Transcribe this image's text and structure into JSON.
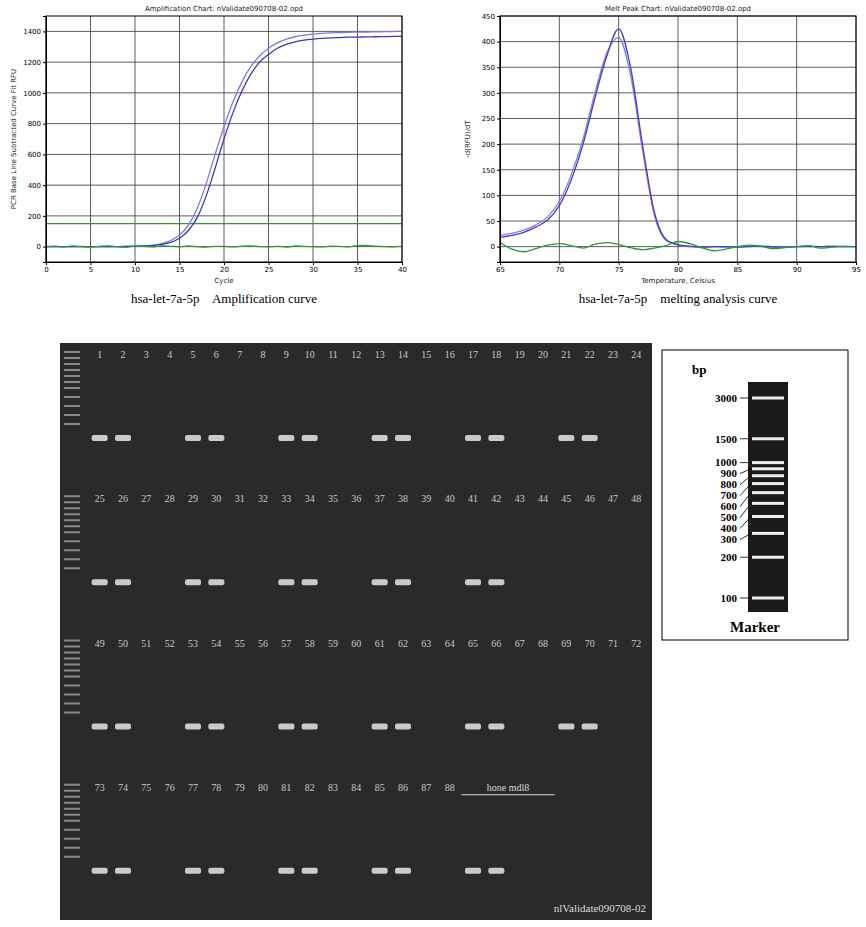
{
  "chart_data": [
    {
      "type": "line",
      "title": "Amplification Chart: nValidate090708-02.opd",
      "x_label": "Cycle",
      "y_label": "PCR Base Line Subtracted Curve Fit RFU",
      "caption": "hsa-let-7a-5p    Amplification curve",
      "x": [
        0,
        1,
        2,
        3,
        4,
        5,
        6,
        7,
        8,
        9,
        10,
        11,
        12,
        13,
        14,
        15,
        16,
        17,
        18,
        19,
        20,
        21,
        22,
        23,
        24,
        25,
        26,
        27,
        28,
        29,
        30,
        31,
        32,
        33,
        34,
        35,
        36,
        37,
        38,
        39,
        40
      ],
      "series": [
        {
          "color": "#7b7be8",
          "values": [
            0,
            0,
            0,
            0,
            0,
            0,
            0,
            0,
            0,
            2,
            3,
            5,
            10,
            20,
            40,
            75,
            140,
            250,
            410,
            600,
            780,
            940,
            1070,
            1170,
            1240,
            1290,
            1325,
            1350,
            1365,
            1375,
            1382,
            1387,
            1390,
            1392,
            1394,
            1395,
            1396,
            1397,
            1398,
            1399,
            1400
          ]
        },
        {
          "color": "#3a3ab8",
          "values": [
            0,
            0,
            0,
            0,
            0,
            0,
            0,
            0,
            0,
            1,
            2,
            4,
            7,
            14,
            28,
            55,
            105,
            190,
            330,
            510,
            700,
            870,
            1010,
            1120,
            1200,
            1250,
            1290,
            1315,
            1332,
            1343,
            1350,
            1355,
            1358,
            1360,
            1362,
            1363,
            1364,
            1365,
            1366,
            1367,
            1368
          ]
        },
        {
          "color": "#2e9a2e",
          "values": [
            0,
            3,
            -2,
            4,
            1,
            -3,
            2,
            5,
            0,
            -4,
            3,
            1,
            -2,
            6,
            2,
            -1,
            4,
            0,
            -3,
            2,
            1,
            -2,
            3,
            5,
            0,
            -1,
            2,
            -3,
            4,
            1,
            0,
            -2,
            3,
            2,
            -1,
            6,
            8,
            3,
            0,
            -2,
            1
          ]
        }
      ],
      "threshold": 150,
      "xlim": [
        0,
        40
      ],
      "xticks": [
        0,
        5,
        10,
        15,
        20,
        25,
        30,
        35,
        40
      ],
      "ylim": [
        -100,
        1500
      ],
      "yticks": [
        0,
        200,
        400,
        600,
        800,
        1000,
        1200,
        1400
      ],
      "grid": true
    },
    {
      "type": "line",
      "title": "Melt Peak Chart: nValidate090708-02.opd",
      "x_label": "Temperature, Celsius",
      "y_label": "-d(RFU)/dT",
      "caption": "hsa-let-7a-5p    melting analysis curve",
      "x": [
        65,
        66,
        67,
        68,
        69,
        70,
        71,
        72,
        73,
        74,
        75,
        76,
        77,
        78,
        79,
        80,
        81,
        82,
        83,
        84,
        85,
        86,
        87,
        88,
        89,
        90,
        91,
        92,
        93,
        94,
        95
      ],
      "series": [
        {
          "color": "#8080e8",
          "values": [
            22,
            26,
            32,
            42,
            58,
            88,
            140,
            210,
            300,
            378,
            408,
            335,
            190,
            62,
            12,
            3,
            0,
            -2,
            0,
            -1,
            0,
            1,
            0,
            -2,
            0,
            0,
            1,
            0,
            -1,
            0,
            0
          ]
        },
        {
          "color": "#4040c0",
          "values": [
            18,
            22,
            28,
            38,
            52,
            80,
            130,
            200,
            290,
            372,
            425,
            350,
            200,
            68,
            14,
            4,
            1,
            -1,
            0,
            0,
            -1,
            0,
            1,
            0,
            -1,
            0,
            0,
            0,
            1,
            0,
            0
          ]
        },
        {
          "color": "#2e9a2e",
          "values": [
            8,
            -5,
            -10,
            -4,
            3,
            6,
            2,
            -3,
            5,
            8,
            4,
            -2,
            -6,
            -3,
            2,
            10,
            6,
            -2,
            -8,
            -5,
            0,
            3,
            1,
            -4,
            -2,
            0,
            2,
            -3,
            -1,
            1,
            0
          ]
        }
      ],
      "xlim": [
        65,
        95
      ],
      "xticks": [
        65,
        70,
        75,
        80,
        85,
        90,
        95
      ],
      "ylim": [
        -30,
        450
      ],
      "yticks": [
        0,
        50,
        100,
        150,
        200,
        250,
        300,
        350,
        400,
        450
      ],
      "grid": true
    }
  ],
  "gel": {
    "rows": [
      {
        "lanes": [
          1,
          2,
          3,
          4,
          5,
          6,
          7,
          8,
          9,
          10,
          11,
          12,
          13,
          14,
          15,
          16,
          17,
          18,
          19,
          20,
          21,
          22,
          23,
          24
        ],
        "bands": [
          true,
          true,
          false,
          false,
          true,
          true,
          false,
          false,
          true,
          true,
          false,
          false,
          true,
          true,
          false,
          false,
          true,
          true,
          false,
          false,
          true,
          true,
          false,
          false
        ]
      },
      {
        "lanes": [
          25,
          26,
          27,
          28,
          29,
          30,
          31,
          32,
          33,
          34,
          35,
          36,
          37,
          38,
          39,
          40,
          41,
          42,
          43,
          44,
          45,
          46,
          47,
          48
        ],
        "bands": [
          true,
          true,
          false,
          false,
          true,
          true,
          false,
          false,
          true,
          true,
          false,
          false,
          true,
          true,
          false,
          false,
          true,
          true,
          false,
          false,
          false,
          false,
          false,
          false
        ]
      },
      {
        "lanes": [
          49,
          50,
          51,
          52,
          53,
          54,
          55,
          56,
          57,
          58,
          59,
          60,
          61,
          62,
          63,
          64,
          65,
          66,
          67,
          68,
          69,
          70,
          71,
          72
        ],
        "bands": [
          true,
          true,
          false,
          false,
          true,
          true,
          false,
          false,
          true,
          true,
          false,
          false,
          true,
          true,
          false,
          false,
          true,
          true,
          false,
          false,
          true,
          true,
          false,
          false
        ]
      },
      {
        "lanes": [
          73,
          74,
          75,
          76,
          77,
          78,
          79,
          80,
          81,
          82,
          83,
          84,
          85,
          86,
          87,
          88,
          null,
          null,
          null,
          null,
          null,
          null,
          null,
          null
        ],
        "group_label": "hone mdl8",
        "bands": [
          true,
          true,
          false,
          false,
          true,
          true,
          false,
          false,
          true,
          true,
          false,
          false,
          true,
          true,
          false,
          false,
          true,
          true,
          false,
          false,
          false,
          false,
          false,
          false
        ]
      }
    ],
    "label": "nlValidate090708-02"
  },
  "marker": {
    "unit": "bp",
    "sizes": [
      3000,
      1500,
      1000,
      900,
      800,
      700,
      600,
      500,
      400,
      300,
      200,
      100
    ],
    "title": "Marker"
  }
}
